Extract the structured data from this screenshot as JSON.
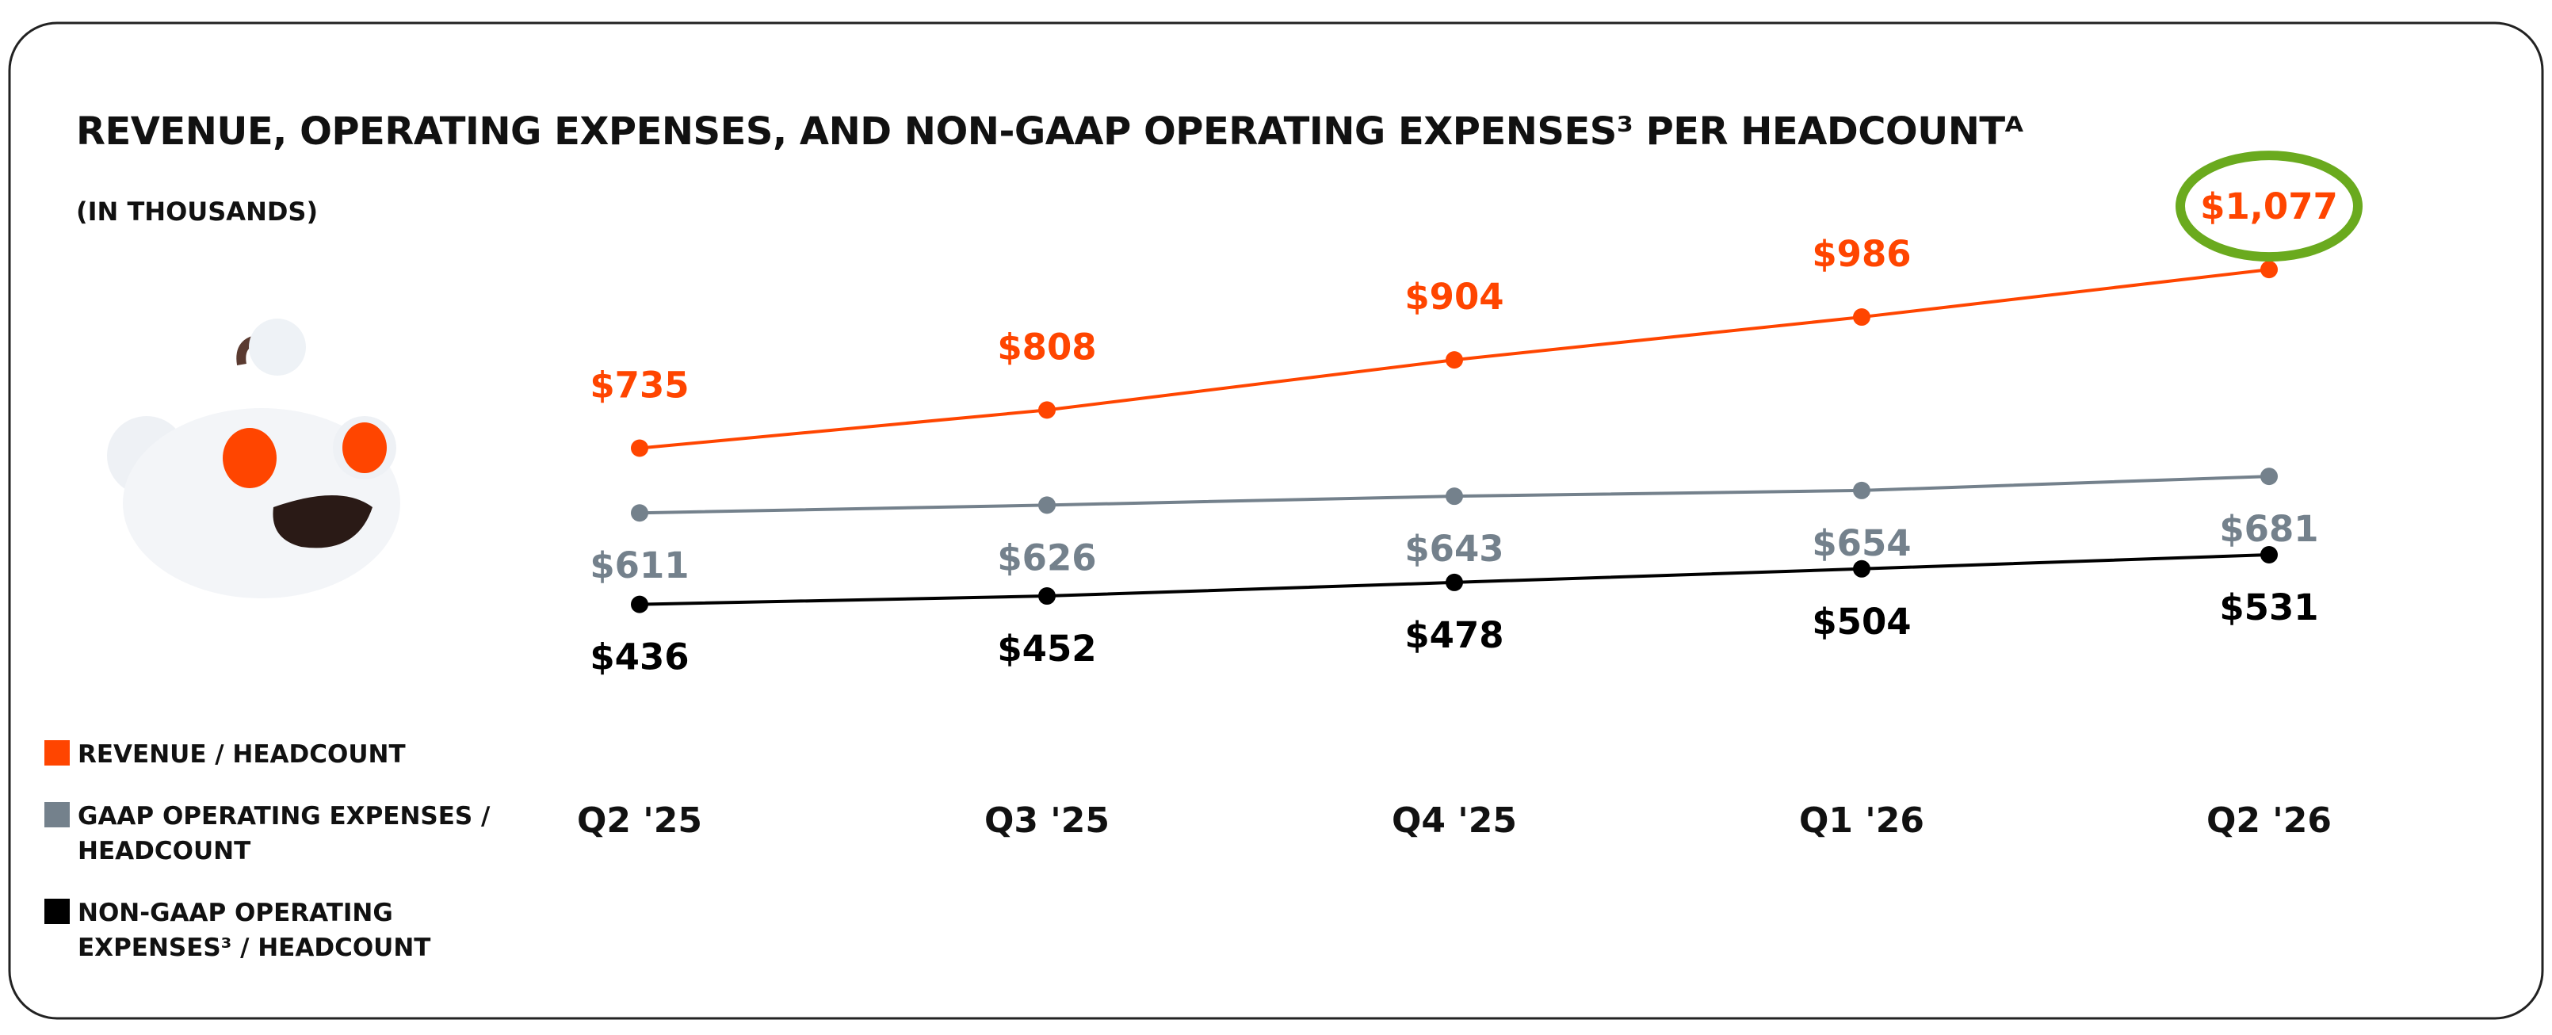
{
  "chart_data": {
    "type": "line",
    "title": "REVENUE, OPERATING EXPENSES, AND NON-GAAP OPERATING EXPENSES³ PER HEADCOUNTᴬ",
    "subtitle": "(IN THOUSANDS)",
    "categories": [
      "Q2 '25",
      "Q3 '25",
      "Q4 '25",
      "Q1 '26",
      "Q2 '26"
    ],
    "ylim": [
      0,
      1200
    ],
    "series": [
      {
        "name": "REVENUE / HEADCOUNT",
        "color": "#ff4500",
        "label_position": "above",
        "values": [
          735,
          808,
          904,
          986,
          1077
        ],
        "value_labels": [
          "$735",
          "$808",
          "$904",
          "$986",
          "$1,077"
        ]
      },
      {
        "name": "GAAP OPERATING EXPENSES / HEADCOUNT",
        "color": "#74818c",
        "label_position": "below",
        "values": [
          611,
          626,
          643,
          654,
          681
        ],
        "value_labels": [
          "$611",
          "$626",
          "$643",
          "$654",
          "$681"
        ]
      },
      {
        "name": "NON-GAAP OPERATING EXPENSES³ / HEADCOUNT",
        "color": "#000000",
        "label_position": "below",
        "values": [
          436,
          452,
          478,
          504,
          531
        ],
        "value_labels": [
          "$436",
          "$452",
          "$478",
          "$504",
          "$531"
        ]
      }
    ],
    "highlight_color": "#6aaa1e",
    "legend": "bottom-left"
  }
}
